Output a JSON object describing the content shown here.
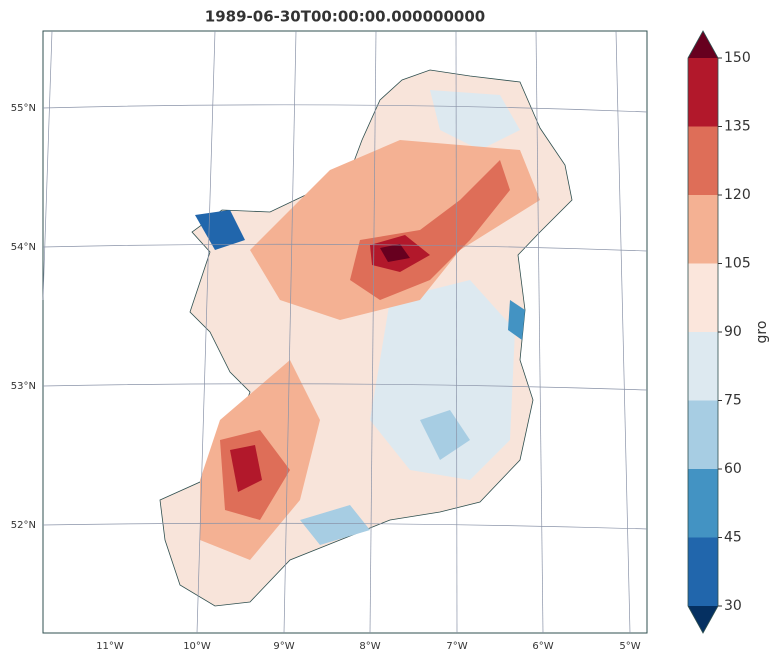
{
  "title": "1989-06-30T00:00:00.000000000",
  "latitude_labels": [
    "55°N",
    "54°N",
    "53°N",
    "52°N"
  ],
  "longitude_labels": [
    "11°W",
    "10°W",
    "9°W",
    "8°W",
    "7°W",
    "6°W",
    "5°W"
  ],
  "colorbar": {
    "label": "gro",
    "ticks": [
      30,
      45,
      60,
      75,
      90,
      105,
      120,
      135,
      150
    ],
    "colors": [
      "#053061",
      "#2166ac",
      "#4393c3",
      "#a7cde3",
      "#dde9f0",
      "#fbe6dc",
      "#f4b193",
      "#de6e58",
      "#b2182b",
      "#67001f"
    ]
  }
}
